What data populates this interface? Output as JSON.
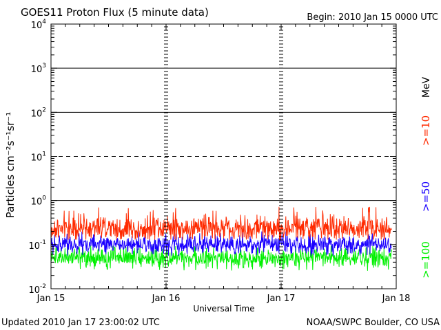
{
  "chart_data": {
    "type": "line",
    "title": "GOES11 Proton Flux (5 minute data)",
    "begin_label": "Begin: 2010 Jan 15 0000 UTC",
    "xlabel": "Universal Time",
    "ylabel": "Particles cm⁻²s⁻¹sr⁻¹",
    "x_ticks": [
      "Jan 15",
      "Jan 16",
      "Jan 17",
      "Jan 18"
    ],
    "y_scale": "log",
    "ylim": [
      0.01,
      10000
    ],
    "y_ticks": [
      {
        "base": "10",
        "exp": "4",
        "value": 10000
      },
      {
        "base": "10",
        "exp": "3",
        "value": 1000
      },
      {
        "base": "10",
        "exp": "2",
        "value": 100
      },
      {
        "base": "10",
        "exp": "1",
        "value": 10
      },
      {
        "base": "10",
        "exp": "0",
        "value": 1
      },
      {
        "base": "10",
        "exp": "-1",
        "value": 0.1
      },
      {
        "base": "10",
        "exp": "-2",
        "value": 0.01
      }
    ],
    "xlim_days": [
      0,
      3
    ],
    "data_end_day": 2.96,
    "units_label": "MeV",
    "series": [
      {
        "name": ">=10",
        "color": "#ff2a00",
        "median": 0.24,
        "min": 0.13,
        "max": 0.75
      },
      {
        "name": ">=50",
        "color": "#1a00ff",
        "median": 0.1,
        "min": 0.055,
        "max": 0.2
      },
      {
        "name": ">=100",
        "color": "#00f000",
        "median": 0.05,
        "min": 0.025,
        "max": 0.1
      }
    ],
    "grid": {
      "solid_at": [
        1000,
        100,
        1
      ],
      "dashed_at": [
        10
      ]
    }
  },
  "footer": {
    "updated": "Updated 2010 Jan 17 23:00:02 UTC",
    "source": "NOAA/SWPC Boulder, CO USA"
  }
}
